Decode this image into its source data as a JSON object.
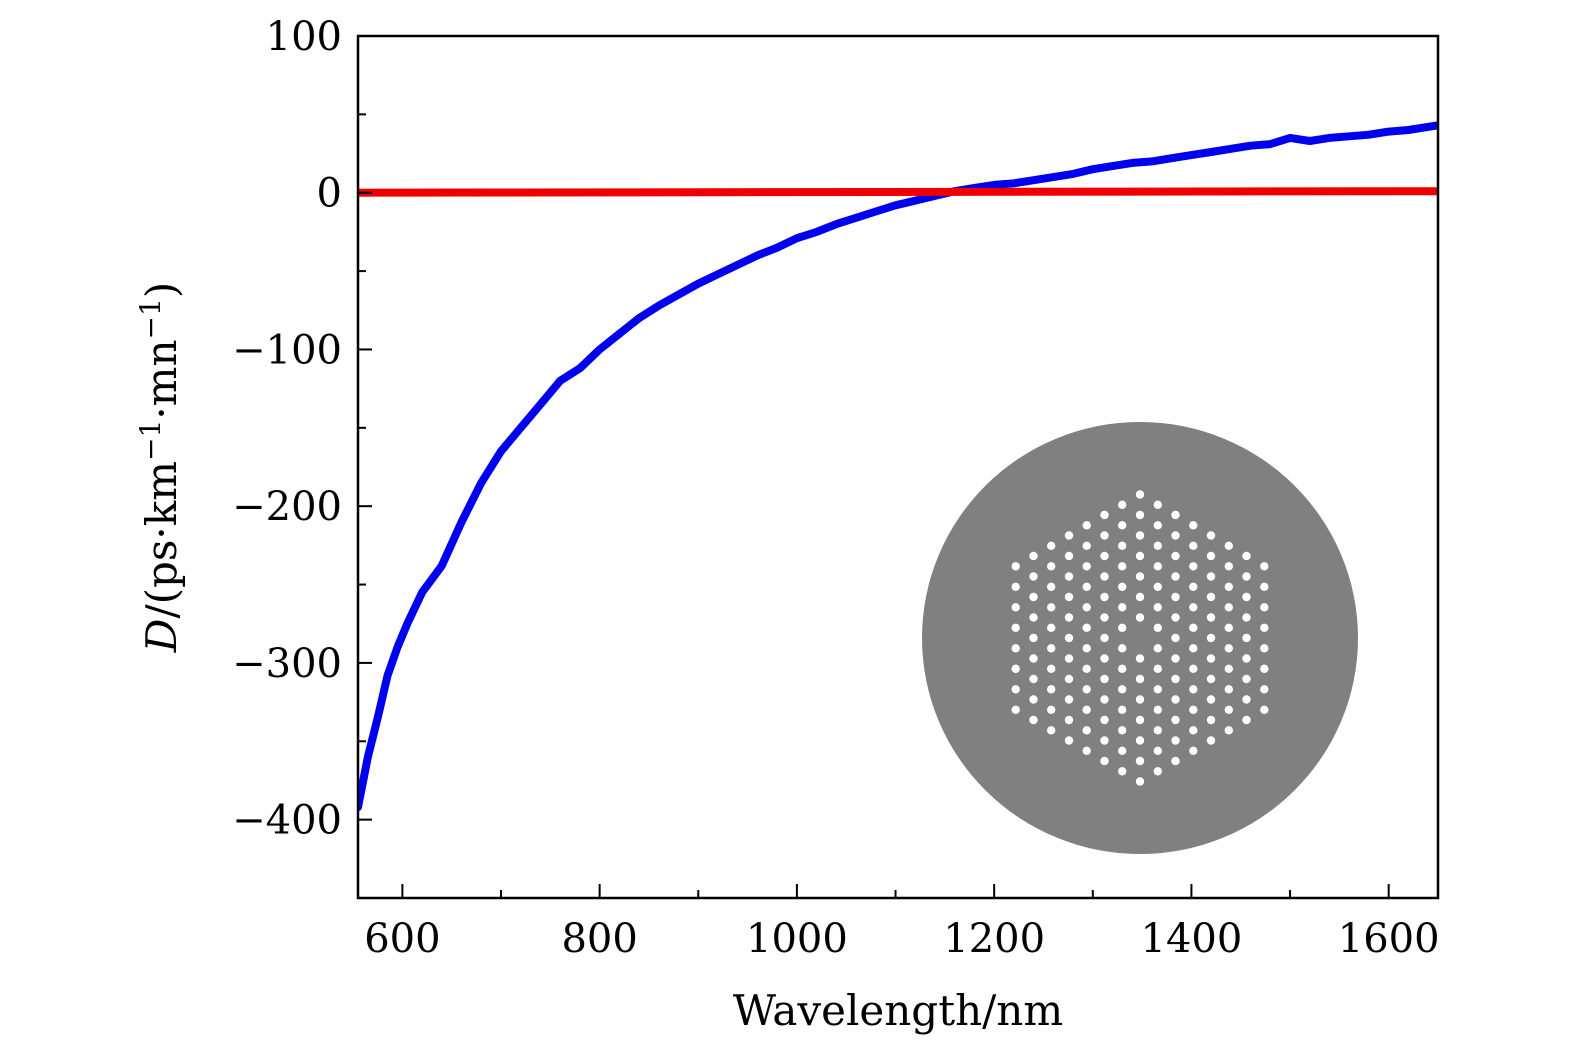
{
  "chart_data": {
    "type": "line",
    "xlabel": "Wavelength/nm",
    "ylabel": {
      "italic": "D",
      "rest": "/(ps·km",
      "sup1": "−1",
      "mid": "·mn",
      "sup2": "−1",
      "close": ")"
    },
    "xlim": [
      555,
      1650
    ],
    "ylim": [
      -450,
      100
    ],
    "xticks": [
      600,
      800,
      1000,
      1200,
      1400,
      1600
    ],
    "xtick_labels": [
      "600",
      "800",
      "1000",
      "1200",
      "1400",
      "1600"
    ],
    "yticks": [
      100,
      0,
      -100,
      -200,
      -300,
      -400
    ],
    "ytick_labels": [
      "100",
      "0",
      "−100",
      "−200",
      "−300",
      "−400"
    ],
    "grid": false,
    "legend": "none",
    "series": [
      {
        "color": "#0000ee",
        "x": [
          555,
          565,
          575,
          585,
          595,
          605,
          620,
          640,
          660,
          680,
          700,
          720,
          740,
          760,
          780,
          800,
          820,
          840,
          860,
          880,
          900,
          920,
          940,
          960,
          980,
          1000,
          1020,
          1040,
          1060,
          1080,
          1100,
          1120,
          1140,
          1160,
          1180,
          1200,
          1220,
          1240,
          1260,
          1280,
          1300,
          1320,
          1340,
          1360,
          1380,
          1400,
          1420,
          1440,
          1460,
          1480,
          1500,
          1520,
          1540,
          1560,
          1580,
          1600,
          1620,
          1650
        ],
        "y": [
          -392,
          -360,
          -335,
          -308,
          -290,
          -275,
          -255,
          -238,
          -210,
          -185,
          -165,
          -150,
          -135,
          -120,
          -112,
          -100,
          -90,
          -80,
          -72,
          -65,
          -58,
          -52,
          -46,
          -40,
          -35,
          -29,
          -25,
          -20,
          -16,
          -12,
          -8,
          -5,
          -2,
          1,
          3,
          5,
          6,
          8,
          10,
          12,
          15,
          17,
          19,
          20,
          22,
          24,
          26,
          28,
          30,
          31,
          35,
          33,
          35,
          36,
          37,
          39,
          40,
          43
        ]
      },
      {
        "color": "#ee0000",
        "x": [
          555,
          1650
        ],
        "y": [
          0,
          1
        ]
      }
    ],
    "inset": {
      "description_type": "fiber-cross-section",
      "disk_color": "#808080",
      "hole_color": "#ffffff",
      "rings": 4,
      "missing_center": true
    }
  }
}
